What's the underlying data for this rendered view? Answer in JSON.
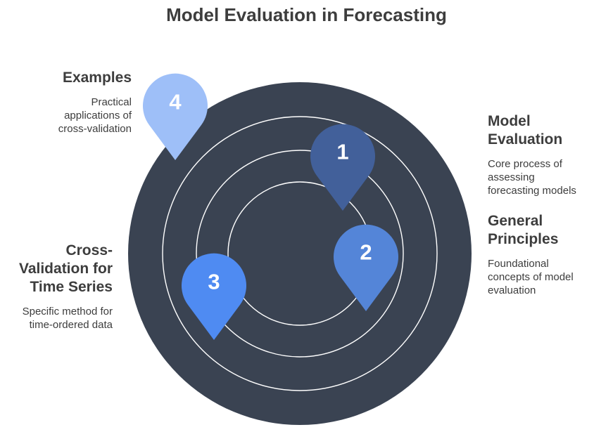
{
  "title": "Model Evaluation in Forecasting",
  "colors": {
    "target_fill": "#3a4352",
    "ring_stroke": "#ffffff",
    "pin_1": "#42609a",
    "pin_2": "#5485d8",
    "pin_3": "#4f8bf2",
    "pin_4": "#9ebff8"
  },
  "items": [
    {
      "number": "1",
      "heading_lines": [
        "Model",
        "Evaluation"
      ],
      "description_lines": [
        "Core process of",
        "assessing",
        "forecasting models"
      ]
    },
    {
      "number": "2",
      "heading_lines": [
        "General",
        "Principles"
      ],
      "description_lines": [
        "Foundational",
        "concepts of model",
        "evaluation"
      ]
    },
    {
      "number": "3",
      "heading_lines": [
        "Cross-",
        "Validation for",
        "Time Series"
      ],
      "description_lines": [
        "Specific method for",
        "time-ordered data"
      ]
    },
    {
      "number": "4",
      "heading_lines": [
        "Examples"
      ],
      "description_lines": [
        "Practical",
        "applications of",
        "cross-validation"
      ]
    }
  ]
}
